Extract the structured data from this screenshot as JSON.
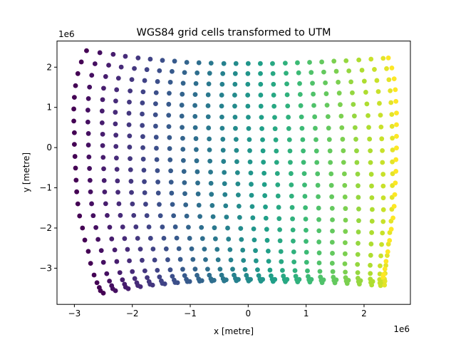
{
  "chart_data": {
    "type": "scatter",
    "title": "WGS84 grid cells transformed to UTM",
    "xlabel": "x [metre]",
    "ylabel": "y [metre]",
    "x_offset_label": "1e6",
    "y_offset_label": "1e6",
    "xlim": [
      -3.3,
      2.8
    ],
    "ylim": [
      -3.9,
      2.65
    ],
    "xticks": [
      -3,
      -2,
      -1,
      0,
      1,
      2
    ],
    "xtick_labels": [
      "−3",
      "−2",
      "−1",
      "0",
      "1",
      "2"
    ],
    "yticks": [
      -3,
      -2,
      -1,
      0,
      1,
      2
    ],
    "ytick_labels": [
      "−3",
      "−2",
      "−1",
      "0",
      "1",
      "2"
    ],
    "grid": false,
    "colormap": "viridis",
    "marker_radius_note": "circles",
    "grid_columns": 26,
    "grid_rows": 24,
    "top_edge": [
      [
        -2.79,
        2.41
      ],
      [
        -2.56,
        2.36
      ],
      [
        -2.33,
        2.32
      ],
      [
        -2.12,
        2.27
      ],
      [
        -1.9,
        2.23
      ],
      [
        -1.69,
        2.2
      ],
      [
        -1.48,
        2.17
      ],
      [
        -1.27,
        2.15
      ],
      [
        -1.06,
        2.12
      ],
      [
        -0.85,
        2.11
      ],
      [
        -0.64,
        2.1
      ],
      [
        -0.42,
        2.09
      ],
      [
        -0.21,
        2.09
      ],
      [
        0.0,
        2.09
      ],
      [
        0.21,
        2.09
      ],
      [
        0.42,
        2.09
      ],
      [
        0.64,
        2.1
      ],
      [
        0.85,
        2.11
      ],
      [
        1.06,
        2.12
      ],
      [
        1.27,
        2.13
      ],
      [
        1.48,
        2.15
      ],
      [
        1.69,
        2.16
      ],
      [
        1.91,
        2.18
      ],
      [
        2.12,
        2.2
      ],
      [
        2.33,
        2.22
      ],
      [
        2.42,
        2.23
      ]
    ],
    "bottom_edge": [
      [
        -2.5,
        -3.62
      ],
      [
        -2.29,
        -3.56
      ],
      [
        -2.07,
        -3.51
      ],
      [
        -1.86,
        -3.46
      ],
      [
        -1.65,
        -3.42
      ],
      [
        -1.44,
        -3.39
      ],
      [
        -1.22,
        -3.36
      ],
      [
        -1.01,
        -3.33
      ],
      [
        -0.8,
        -3.31
      ],
      [
        -0.59,
        -3.3
      ],
      [
        -0.38,
        -3.29
      ],
      [
        -0.17,
        -3.28
      ],
      [
        0.04,
        -3.28
      ],
      [
        0.25,
        -3.28
      ],
      [
        0.46,
        -3.28
      ],
      [
        0.67,
        -3.28
      ],
      [
        0.88,
        -3.28
      ],
      [
        1.09,
        -3.28
      ],
      [
        1.3,
        -3.29
      ],
      [
        1.52,
        -3.29
      ],
      [
        1.73,
        -3.3
      ],
      [
        1.94,
        -3.31
      ],
      [
        2.15,
        -3.33
      ],
      [
        2.3,
        -3.34
      ],
      [
        2.36,
        -3.32
      ],
      [
        2.33,
        -3.18
      ]
    ],
    "left_edge": [
      [
        -2.79,
        2.41
      ],
      [
        -2.88,
        2.13
      ],
      [
        -2.94,
        1.84
      ],
      [
        -2.98,
        1.54
      ],
      [
        -3.0,
        1.25
      ],
      [
        -3.01,
        0.96
      ],
      [
        -3.01,
        0.66
      ],
      [
        -3.0,
        0.37
      ],
      [
        -3.0,
        0.08
      ],
      [
        -2.99,
        -0.22
      ],
      [
        -2.98,
        -0.51
      ],
      [
        -2.97,
        -0.81
      ],
      [
        -2.96,
        -1.1
      ],
      [
        -2.94,
        -1.4
      ],
      [
        -2.91,
        -1.7
      ],
      [
        -2.86,
        -2.0
      ],
      [
        -2.82,
        -2.3
      ],
      [
        -2.76,
        -2.58
      ],
      [
        -2.72,
        -2.88
      ],
      [
        -2.66,
        -3.17
      ],
      [
        -2.61,
        -3.36
      ],
      [
        -2.57,
        -3.48
      ],
      [
        -2.55,
        -3.56
      ],
      [
        -2.5,
        -3.62
      ]
    ],
    "right_edge": [
      [
        2.42,
        2.23
      ],
      [
        2.48,
        1.98
      ],
      [
        2.52,
        1.71
      ],
      [
        2.54,
        1.44
      ],
      [
        2.55,
        1.15
      ],
      [
        2.56,
        0.86
      ],
      [
        2.56,
        0.57
      ],
      [
        2.56,
        0.28
      ],
      [
        2.56,
        -0.01
      ],
      [
        2.55,
        -0.3
      ],
      [
        2.55,
        -0.59
      ],
      [
        2.54,
        -0.88
      ],
      [
        2.53,
        -1.17
      ],
      [
        2.52,
        -1.46
      ],
      [
        2.5,
        -1.75
      ],
      [
        2.47,
        -2.03
      ],
      [
        2.44,
        -2.31
      ],
      [
        2.41,
        -2.59
      ],
      [
        2.38,
        -2.83
      ],
      [
        2.36,
        -3.02
      ],
      [
        2.34,
        -3.15
      ],
      [
        2.33,
        -3.23
      ],
      [
        2.33,
        -3.29
      ],
      [
        2.33,
        -3.18
      ]
    ]
  }
}
